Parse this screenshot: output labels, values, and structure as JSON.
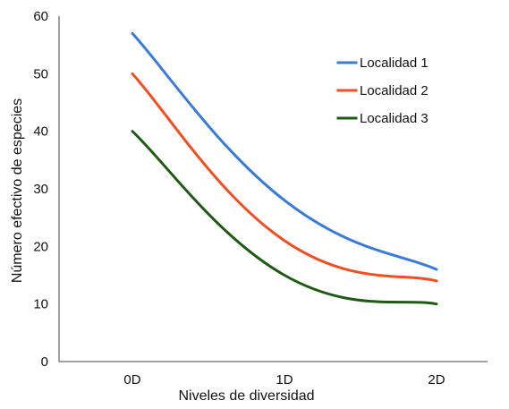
{
  "chart_data": {
    "type": "line",
    "categories": [
      "0D",
      "1D",
      "2D"
    ],
    "xlabel": "Niveles de diversidad",
    "ylabel": "Número efectivo de especies",
    "ylim": [
      0,
      60
    ],
    "yticks": [
      0,
      10,
      20,
      30,
      40,
      50,
      60
    ],
    "grid": false,
    "legend_position": "top-right",
    "series": [
      {
        "name": "Localidad 1",
        "color": "#3A7BD5",
        "values": [
          57,
          28,
          16
        ]
      },
      {
        "name": "Localidad 2",
        "color": "#F04E23",
        "values": [
          50,
          21,
          14
        ]
      },
      {
        "name": "Localidad 3",
        "color": "#1E5A14",
        "values": [
          40,
          15,
          10
        ]
      }
    ]
  }
}
